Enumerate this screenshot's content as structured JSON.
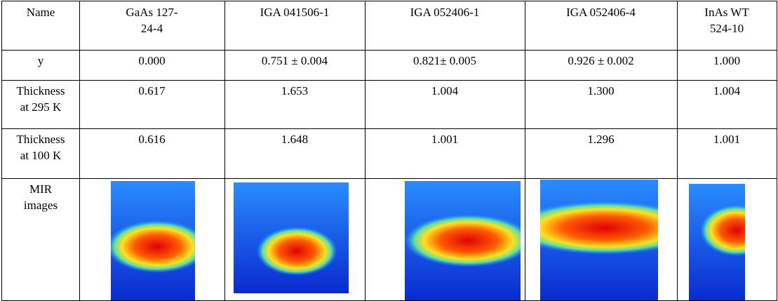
{
  "table": {
    "header": [
      "Name",
      "GaAs 127-24-4",
      "IGA 041506-1",
      "IGA 052406-1",
      "IGA 052406-4",
      "InAs WT 524-10"
    ],
    "rows": [
      [
        "y",
        "0.000",
        "0.751 ± 0.004",
        "0.821± 0.005",
        "0.926 ± 0.002",
        "1.000"
      ],
      [
        "Thickness at 295 K",
        "0.617",
        "1.653",
        "1.004",
        "1.300",
        "1.004"
      ],
      [
        "Thickness at 100 K",
        "0.616",
        "1.648",
        "1.001",
        "1.296",
        "1.001"
      ]
    ],
    "image_row_label": "MIR images"
  }
}
